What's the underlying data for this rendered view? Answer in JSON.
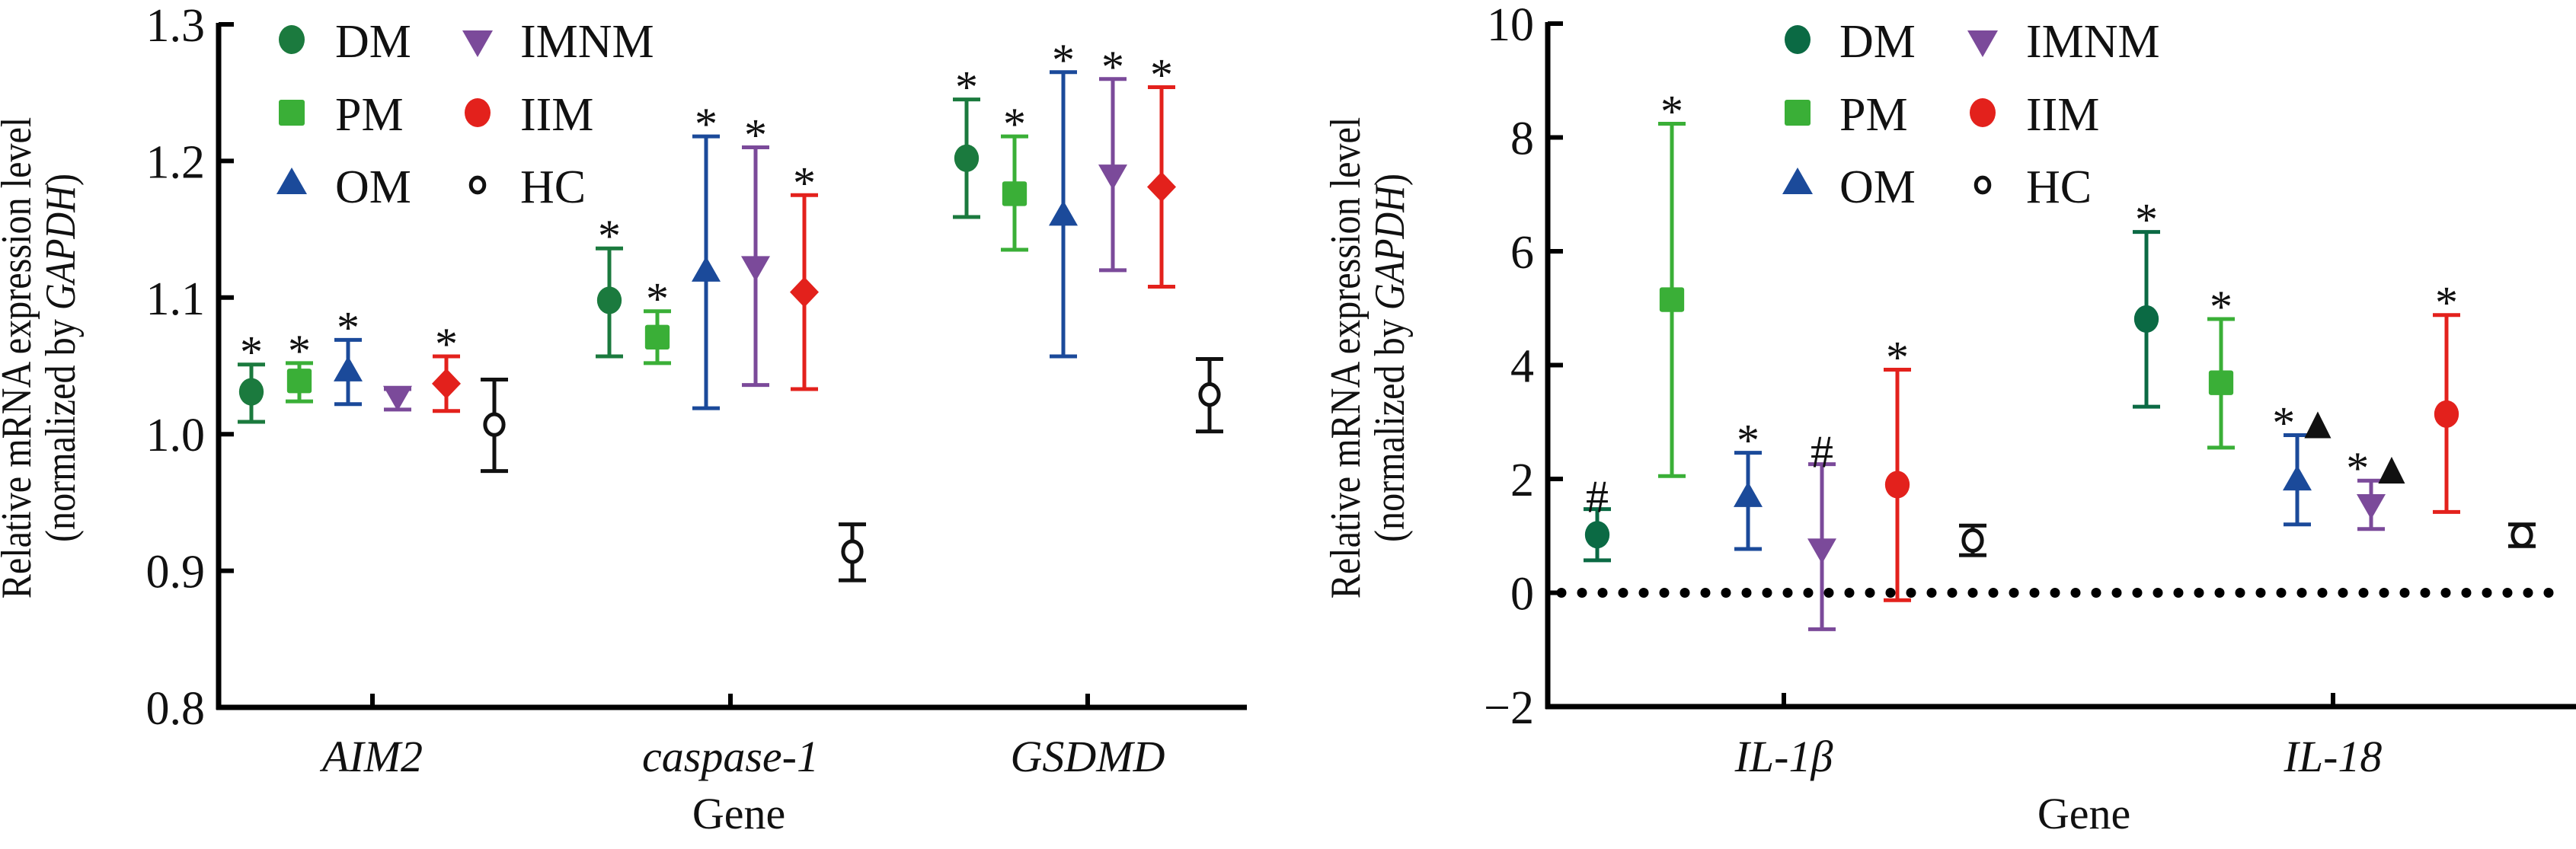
{
  "chart_data": [
    {
      "type": "scatter",
      "subtype": "dot-plot-with-error-bars",
      "title": "",
      "ylabel_line1": "Relative mRNA expression level",
      "ylabel_line2_prefix": "(normalized by ",
      "ylabel_line2_italic": "GAPDH",
      "ylabel_line2_suffix": ")",
      "xlabel": "Gene",
      "ylim": [
        0.8,
        1.3
      ],
      "yticks": [
        0.8,
        0.9,
        1.0,
        1.1,
        1.2,
        1.3
      ],
      "ytick_labels": [
        "0.8",
        "0.9",
        "1.0",
        "1.1",
        "1.2",
        "1.3"
      ],
      "zero_line": false,
      "legend_position": "top-left",
      "categories": [
        "AIM2",
        "caspase-1",
        "GSDMD"
      ],
      "series": [
        {
          "name": "DM",
          "color": "#1b7a3e",
          "marker": "circle",
          "values": [
            1.031,
            1.098,
            1.202
          ],
          "err_high": [
            1.051,
            1.136,
            1.245
          ],
          "err_low": [
            1.009,
            1.057,
            1.159
          ],
          "annotations": [
            "*",
            "*",
            "*"
          ]
        },
        {
          "name": "PM",
          "color": "#3aaf37",
          "marker": "square",
          "values": [
            1.039,
            1.071,
            1.176
          ],
          "err_high": [
            1.052,
            1.09,
            1.218
          ],
          "err_low": [
            1.024,
            1.052,
            1.135
          ],
          "annotations": [
            "*",
            "*",
            "*"
          ]
        },
        {
          "name": "OM",
          "color": "#1b4a9a",
          "marker": "triangle-up",
          "values": [
            1.045,
            1.118,
            1.159
          ],
          "err_high": [
            1.069,
            1.218,
            1.265
          ],
          "err_low": [
            1.022,
            1.019,
            1.057
          ],
          "annotations": [
            "*",
            "*",
            "*"
          ]
        },
        {
          "name": "IMNM",
          "color": "#7b4a9a",
          "marker": "triangle-down",
          "values": [
            1.029,
            1.124,
            1.191
          ],
          "err_high": [
            1.033,
            1.21,
            1.26
          ],
          "err_low": [
            1.018,
            1.036,
            1.12
          ],
          "annotations": [
            "",
            "*",
            "*"
          ]
        },
        {
          "name": "IIM",
          "color": "#e3211c",
          "marker": "diamond",
          "values": [
            1.037,
            1.104,
            1.181
          ],
          "err_high": [
            1.057,
            1.175,
            1.254
          ],
          "err_low": [
            1.017,
            1.033,
            1.108
          ],
          "annotations": [
            "*",
            "*",
            "*"
          ]
        },
        {
          "name": "HC",
          "color": "#111111",
          "marker": "open-circle",
          "values": [
            1.007,
            0.914,
            1.029
          ],
          "err_high": [
            1.04,
            0.934,
            1.055
          ],
          "err_low": [
            0.973,
            0.893,
            1.002
          ],
          "annotations": [
            "",
            "",
            ""
          ]
        }
      ]
    },
    {
      "type": "scatter",
      "subtype": "dot-plot-with-error-bars",
      "title": "",
      "ylabel_line1": "Relative mRNA expression level",
      "ylabel_line2_prefix": "(normalized by ",
      "ylabel_line2_italic": "GAPDH",
      "ylabel_line2_suffix": ")",
      "xlabel": "Gene",
      "ylim": [
        -2,
        10
      ],
      "yticks": [
        -2,
        0,
        2,
        4,
        6,
        8,
        10
      ],
      "ytick_labels": [
        "−2",
        "0",
        "2",
        "4",
        "6",
        "8",
        "10"
      ],
      "zero_line": true,
      "legend_position": "top-center",
      "categories": [
        "IL-1β",
        "IL-18"
      ],
      "series": [
        {
          "name": "DM",
          "color": "#0b6a44",
          "marker": "circle",
          "values": [
            1.02,
            4.81
          ],
          "err_high": [
            1.47,
            6.34
          ],
          "err_low": [
            0.57,
            3.27
          ],
          "annotations": [
            "#",
            "*"
          ]
        },
        {
          "name": "PM",
          "color": "#3aaf37",
          "marker": "square",
          "values": [
            5.15,
            3.69
          ],
          "err_high": [
            8.24,
            4.81
          ],
          "err_low": [
            2.05,
            2.55
          ],
          "annotations": [
            "*",
            "*"
          ]
        },
        {
          "name": "OM",
          "color": "#1b4a9a",
          "marker": "triangle-up",
          "values": [
            1.66,
            1.95
          ],
          "err_high": [
            2.46,
            2.77
          ],
          "err_low": [
            0.77,
            1.2
          ],
          "annotations": [
            "*",
            "*▲"
          ]
        },
        {
          "name": "IMNM",
          "color": "#7b4a9a",
          "marker": "triangle-down",
          "values": [
            0.8,
            1.58
          ],
          "err_high": [
            2.26,
            1.97
          ],
          "err_low": [
            -0.64,
            1.12
          ],
          "annotations": [
            "#",
            "*▲"
          ]
        },
        {
          "name": "IIM",
          "color": "#e3211c",
          "marker": "circle",
          "values": [
            1.9,
            3.14
          ],
          "err_high": [
            3.92,
            4.88
          ],
          "err_low": [
            -0.13,
            1.42
          ],
          "annotations": [
            "*",
            "*"
          ]
        },
        {
          "name": "HC",
          "color": "#111111",
          "marker": "open-circle",
          "values": [
            0.92,
            1.01
          ],
          "err_high": [
            1.18,
            1.2
          ],
          "err_low": [
            0.66,
            0.82
          ],
          "annotations": [
            "",
            ""
          ]
        }
      ]
    }
  ]
}
